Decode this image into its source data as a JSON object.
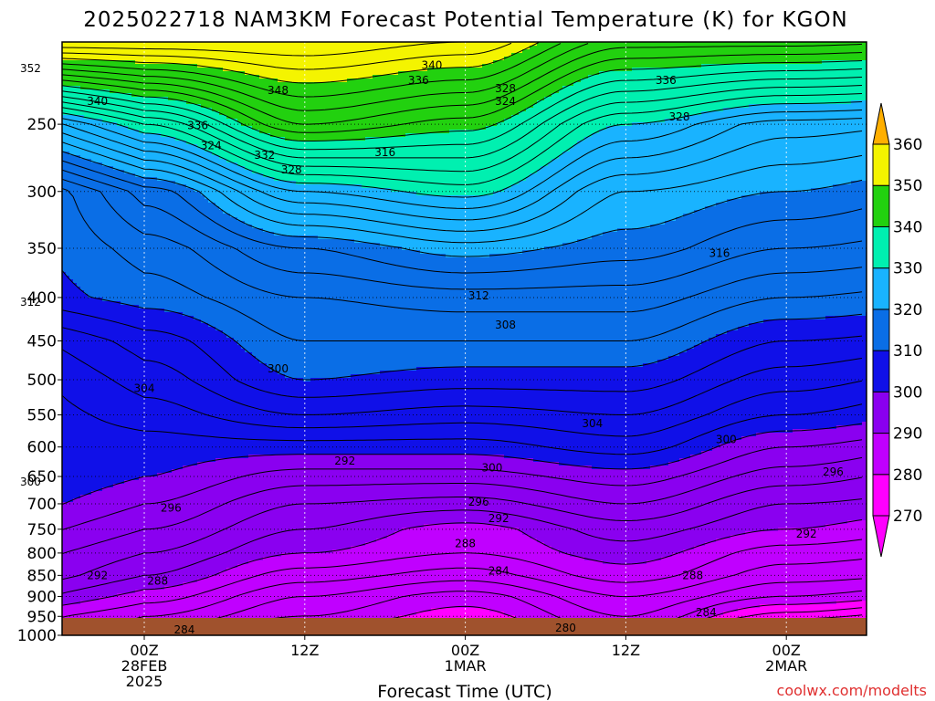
{
  "chart_data": {
    "type": "heatmap",
    "title": "2025022718 NAM3KM Forecast Potential Temperature (K) for KGON",
    "xlabel": "Forecast Time (UTC)",
    "ylabel": "",
    "y_scale": "log-pressure (hPa), reversed",
    "ylim": [
      1000,
      200
    ],
    "y_ticks": [
      250,
      300,
      350,
      400,
      450,
      500,
      550,
      600,
      650,
      700,
      750,
      800,
      850,
      900,
      950,
      1000
    ],
    "x_ticks": [
      {
        "label": "00Z",
        "sub1": "28FEB",
        "sub2": "2025"
      },
      {
        "label": "12Z",
        "sub1": "",
        "sub2": ""
      },
      {
        "label": "00Z",
        "sub1": "1MAR",
        "sub2": ""
      },
      {
        "label": "12Z",
        "sub1": "",
        "sub2": ""
      },
      {
        "label": "00Z",
        "sub1": "2MAR",
        "sub2": ""
      }
    ],
    "grid": true,
    "colorbar": {
      "unit": "K",
      "levels": [
        270,
        280,
        290,
        300,
        310,
        320,
        330,
        340,
        350,
        360
      ],
      "colors": [
        "#ff00ff",
        "#c000ff",
        "#8a00f0",
        "#1010e8",
        "#0a6ee6",
        "#19b3ff",
        "#00f0b0",
        "#22d10f",
        "#f4f400",
        "#ffaf00"
      ],
      "extend": "both",
      "placement": "right"
    },
    "contour_interval": 2,
    "profiles": {
      "hours": [
        0,
        12,
        24,
        36,
        48,
        60
      ],
      "pressure": [
        1000,
        950,
        900,
        850,
        800,
        750,
        700,
        650,
        600,
        550,
        500,
        450,
        400,
        350,
        300,
        250,
        200
      ],
      "theta": [
        [
          284,
          286,
          289,
          292,
          294,
          296,
          298,
          300,
          301,
          303,
          305,
          307,
          311,
          313,
          317,
          332,
          356
        ],
        [
          278,
          282,
          284,
          287,
          290,
          292,
          294,
          297,
          301,
          306,
          310,
          312,
          314,
          318,
          328,
          344,
          356
        ],
        [
          277,
          279,
          281,
          285,
          288,
          289,
          293,
          297,
          301,
          305,
          309,
          312,
          315,
          321,
          331,
          341,
          354
        ],
        [
          282,
          284,
          286,
          289,
          291,
          293,
          296,
          299,
          303,
          306,
          309,
          312,
          315,
          319,
          322,
          330,
          345
        ],
        [
          270,
          277,
          282,
          285,
          287,
          290,
          292,
          295,
          298,
          302,
          305,
          308,
          312,
          316,
          320,
          325,
          345
        ],
        [
          266,
          274,
          280,
          284,
          286,
          288,
          291,
          293,
          296,
          300,
          303,
          307,
          311,
          315,
          318,
          324,
          344
        ]
      ]
    },
    "contour_labels": [
      {
        "text": "352",
        "hour": -8.5,
        "hpa": 215
      },
      {
        "text": "348",
        "hour": 10,
        "hpa": 228
      },
      {
        "text": "340",
        "hour": -3.5,
        "hpa": 235
      },
      {
        "text": "340",
        "hour": 21.5,
        "hpa": 213
      },
      {
        "text": "336",
        "hour": 4,
        "hpa": 251
      },
      {
        "text": "336",
        "hour": 20.5,
        "hpa": 222
      },
      {
        "text": "336",
        "hour": 39,
        "hpa": 222
      },
      {
        "text": "332",
        "hour": 9,
        "hpa": 272
      },
      {
        "text": "328",
        "hour": 11,
        "hpa": 283
      },
      {
        "text": "328",
        "hour": 27,
        "hpa": 227
      },
      {
        "text": "328",
        "hour": 40,
        "hpa": 245
      },
      {
        "text": "324",
        "hour": 5,
        "hpa": 265
      },
      {
        "text": "324",
        "hour": 27,
        "hpa": 235
      },
      {
        "text": "316",
        "hour": 18,
        "hpa": 270
      },
      {
        "text": "316",
        "hour": 43,
        "hpa": 355
      },
      {
        "text": "312",
        "hour": -8.5,
        "hpa": 405
      },
      {
        "text": "312",
        "hour": 25,
        "hpa": 398
      },
      {
        "text": "308",
        "hour": 27,
        "hpa": 431
      },
      {
        "text": "304",
        "hour": 0,
        "hpa": 512
      },
      {
        "text": "304",
        "hour": 33.5,
        "hpa": 563
      },
      {
        "text": "300",
        "hour": 10,
        "hpa": 485
      },
      {
        "text": "300",
        "hour": 26,
        "hpa": 635
      },
      {
        "text": "300",
        "hour": 43.5,
        "hpa": 588
      },
      {
        "text": "300",
        "hour": -8.5,
        "hpa": 660
      },
      {
        "text": "296",
        "hour": 2,
        "hpa": 708
      },
      {
        "text": "296",
        "hour": 25,
        "hpa": 697
      },
      {
        "text": "296",
        "hour": 51.5,
        "hpa": 642
      },
      {
        "text": "292",
        "hour": 15,
        "hpa": 623
      },
      {
        "text": "292",
        "hour": 26.5,
        "hpa": 728
      },
      {
        "text": "292",
        "hour": -3.5,
        "hpa": 850
      },
      {
        "text": "292",
        "hour": 49.5,
        "hpa": 760
      },
      {
        "text": "288",
        "hour": 1,
        "hpa": 863
      },
      {
        "text": "288",
        "hour": 24,
        "hpa": 780
      },
      {
        "text": "288",
        "hour": 41,
        "hpa": 850
      },
      {
        "text": "284",
        "hour": 26.5,
        "hpa": 840
      },
      {
        "text": "284",
        "hour": 3,
        "hpa": 985
      },
      {
        "text": "284",
        "hour": 42,
        "hpa": 940
      },
      {
        "text": "280",
        "hour": 31.5,
        "hpa": 980
      }
    ]
  },
  "credit": "coolwx.com/modelts"
}
